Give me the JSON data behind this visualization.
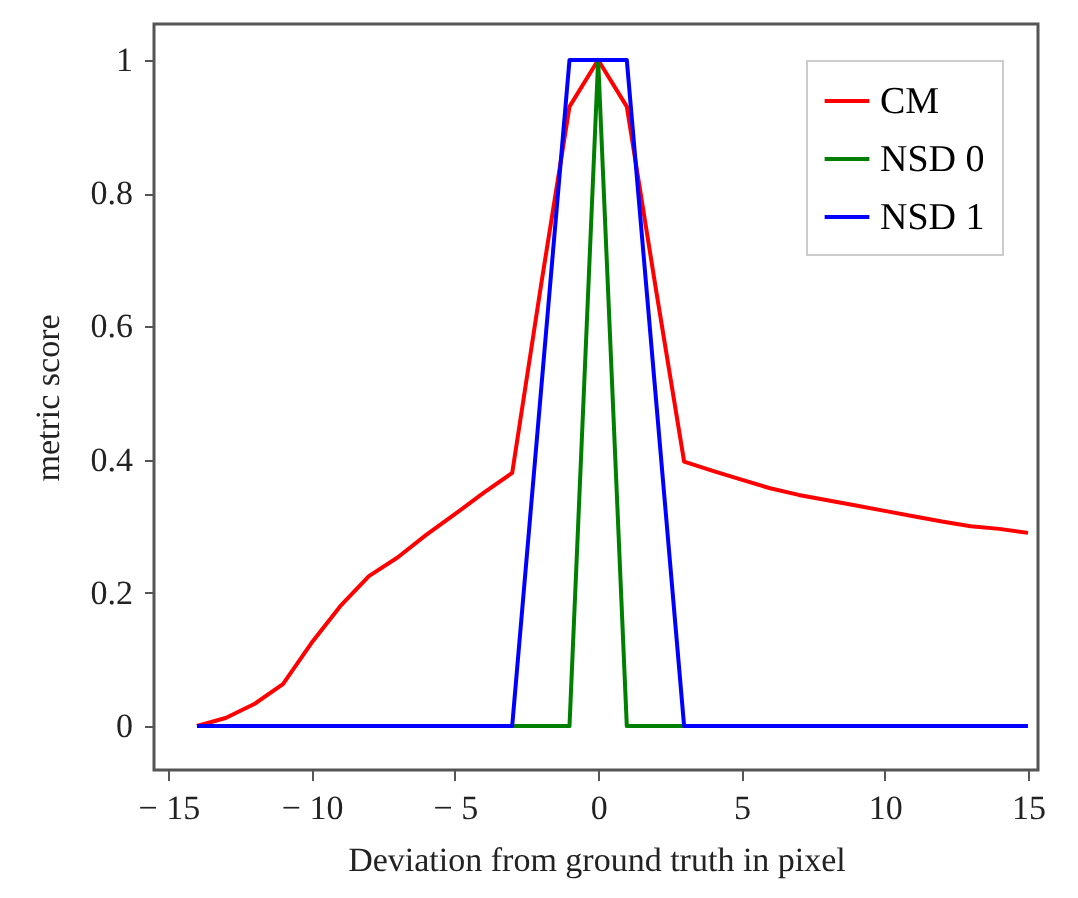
{
  "chart_data": {
    "type": "line",
    "xlabel": "Deviation from ground truth  in pixel",
    "ylabel": "metric score",
    "x": [
      -14,
      -13,
      -12,
      -11,
      -10,
      -9,
      -8,
      -7,
      -6,
      -5,
      -4,
      -3,
      -2,
      -1,
      0,
      1,
      2,
      3,
      4,
      5,
      6,
      7,
      8,
      9,
      10,
      11,
      12,
      13,
      14,
      15
    ],
    "series": [
      {
        "name": "CM",
        "color": "#ff0000",
        "values": [
          0,
          0.012,
          0.033,
          0.063,
          0.125,
          0.18,
          0.225,
          0.253,
          0.287,
          0.318,
          0.35,
          0.38,
          0.66,
          0.93,
          1,
          0.93,
          0.66,
          0.397,
          0.383,
          0.37,
          0.357,
          0.347,
          0.339,
          0.331,
          0.323,
          0.315,
          0.307,
          0.3,
          0.296,
          0.29
        ]
      },
      {
        "name": "NSD 0",
        "color": "#008000",
        "values": [
          null,
          null,
          null,
          null,
          null,
          null,
          null,
          null,
          null,
          null,
          null,
          0,
          0,
          0,
          1,
          0,
          0,
          0,
          null,
          null,
          null,
          null,
          null,
          null,
          null,
          null,
          null,
          null,
          null,
          null
        ]
      },
      {
        "name": "NSD 1",
        "color": "#0000ff",
        "values": [
          0,
          0,
          0,
          0,
          0,
          0,
          0,
          0,
          0,
          0,
          0,
          0,
          0.5,
          1,
          1,
          1,
          0.5,
          0,
          0,
          0,
          0,
          0,
          0,
          0,
          0,
          0,
          0,
          0,
          0,
          0
        ]
      }
    ],
    "xlim": [
      -15.5,
      15.35
    ],
    "ylim": [
      -0.066,
      1.054
    ],
    "xticks": [
      {
        "value": -15,
        "label": "− 15"
      },
      {
        "value": -10,
        "label": "− 10"
      },
      {
        "value": -5,
        "label": "− 5"
      },
      0,
      5,
      10,
      15
    ],
    "yticks": [
      0,
      0.2,
      0.4,
      0.6,
      0.8,
      1
    ],
    "legend": "top right",
    "grid": false,
    "marker": "none",
    "line_style": "solid"
  }
}
